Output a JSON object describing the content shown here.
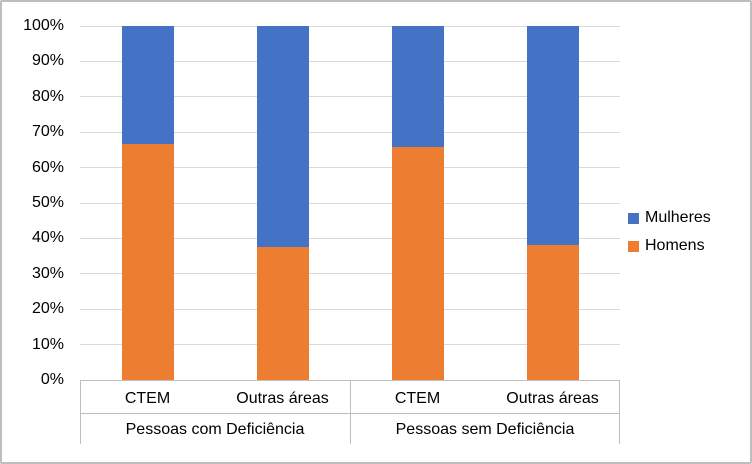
{
  "chart_data": {
    "type": "bar",
    "stacked": true,
    "percent_stacked": true,
    "title": "",
    "xlabel": "",
    "ylabel": "",
    "ylim": [
      0,
      100
    ],
    "grid": true,
    "legend_position": "right",
    "y_ticks": [
      "0%",
      "10%",
      "20%",
      "30%",
      "40%",
      "50%",
      "60%",
      "70%",
      "80%",
      "90%",
      "100%"
    ],
    "categories": [
      "CTEM",
      "Outras áreas",
      "CTEM",
      "Outras áreas"
    ],
    "groups": [
      {
        "label": "Pessoas com Deficiência",
        "categories": [
          "CTEM",
          "Outras áreas"
        ]
      },
      {
        "label": "Pessoas sem Deficiência",
        "categories": [
          "CTEM",
          "Outras áreas"
        ]
      }
    ],
    "series": [
      {
        "name": "Mulheres",
        "color": "#4472C4",
        "values": [
          33.3,
          62.5,
          34.2,
          61.8
        ]
      },
      {
        "name": "Homens",
        "color": "#ED7D31",
        "values": [
          66.7,
          37.5,
          65.8,
          38.2
        ]
      }
    ],
    "colors": {
      "gridline": "#d9d9d9",
      "axis_line": "#bfbfbf",
      "text": "#000000",
      "frame_border": "#bdbdbd"
    }
  }
}
